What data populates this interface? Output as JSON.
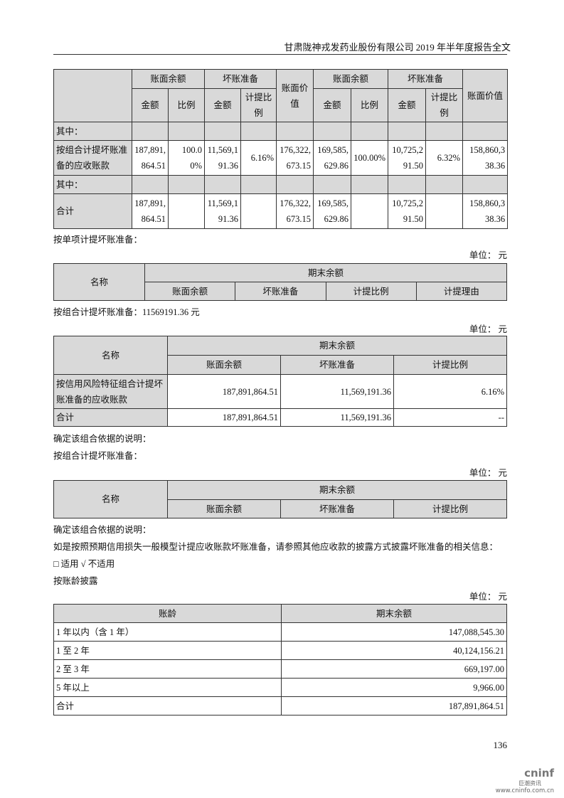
{
  "header": {
    "title": "甘肃陇神戎发药业股份有限公司 2019 年半年度报告全文"
  },
  "table1": {
    "group_headers": [
      "账面余额",
      "坏账准备",
      "账面价值",
      "账面余额",
      "坏账准备",
      "账面价值"
    ],
    "sub_headers": [
      "金额",
      "比例",
      "金额",
      "计提比例",
      "金额",
      "比例",
      "金额",
      "计提比例"
    ],
    "rows": [
      {
        "label": "其中：",
        "cells": [
          "",
          "",
          "",
          "",
          "",
          "",
          "",
          "",
          "",
          ""
        ]
      },
      {
        "label": "按组合计提坏账准备的应收账款",
        "cells": [
          "187,891,864.51",
          "100.00%",
          "11,569,191.36",
          "6.16%",
          "176,322,673.15",
          "169,585,629.86",
          "100.00%",
          "10,725,291.50",
          "6.32%",
          "158,860,338.36"
        ]
      },
      {
        "label": "其中：",
        "cells": [
          "",
          "",
          "",
          "",
          "",
          "",
          "",
          "",
          "",
          ""
        ]
      },
      {
        "label": "合计",
        "cells": [
          "187,891,864.51",
          "",
          "11,569,191.36",
          "",
          "176,322,673.15",
          "169,585,629.86",
          "",
          "10,725,291.50",
          "",
          "158,860,338.36"
        ]
      }
    ]
  },
  "text1": "按单项计提坏账准备：",
  "unit": "单位： 元",
  "table2": {
    "name": "名称",
    "period": "期末余额",
    "cols": [
      "账面余额",
      "坏账准备",
      "计提比例",
      "计提理由"
    ]
  },
  "text2": "按组合计提坏账准备：11569191.36 元",
  "table3": {
    "name": "名称",
    "period": "期末余额",
    "cols": [
      "账面余额",
      "坏账准备",
      "计提比例"
    ],
    "rows": [
      {
        "label": "按信用风险特征组合计提坏账准备的应收账款",
        "values": [
          "187,891,864.51",
          "11,569,191.36",
          "6.16%"
        ]
      },
      {
        "label": "合计",
        "values": [
          "187,891,864.51",
          "11,569,191.36",
          "--"
        ]
      }
    ]
  },
  "text3": "确定该组合依据的说明：",
  "text4": "按组合计提坏账准备：",
  "table4": {
    "name": "名称",
    "period": "期末余额",
    "cols": [
      "账面余额",
      "坏账准备",
      "计提比例"
    ]
  },
  "text5": "确定该组合依据的说明：",
  "text6": "如是按照预期信用损失一般模型计提应收账款坏账准备，请参照其他应收款的披露方式披露坏账准备的相关信息：",
  "text7": "□ 适用 √ 不适用",
  "text8": "按账龄披露",
  "table5": {
    "headers": [
      "账龄",
      "期末余额"
    ],
    "rows": [
      [
        "1 年以内（含 1 年）",
        "147,088,545.30"
      ],
      [
        "1 至 2 年",
        "40,124,156.21"
      ],
      [
        "2 至 3 年",
        "669,197.00"
      ],
      [
        "5 年以上",
        "9,966.00"
      ],
      [
        "合计",
        "187,891,864.51"
      ]
    ]
  },
  "page_number": "136",
  "logo": {
    "brand": "cninf",
    "cn": "巨潮资讯",
    "url": "www.cninfo.com.cn"
  }
}
